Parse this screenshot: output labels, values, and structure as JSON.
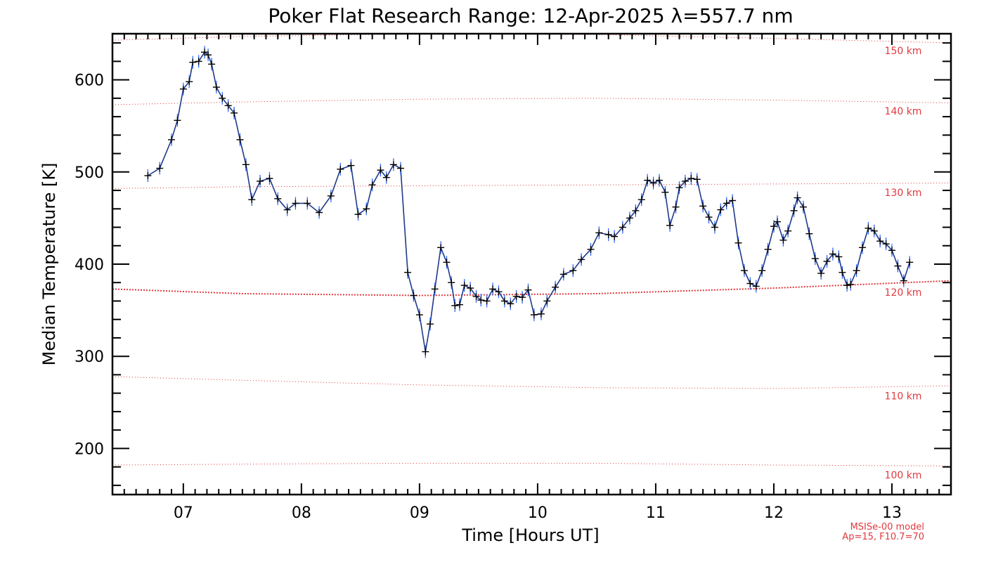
{
  "chart_data": {
    "type": "line",
    "title": "Poker Flat Research Range: 12-Apr-2025 λ=557.7 nm",
    "xlabel": "Time [Hours UT]",
    "ylabel": "Median Temperature [K]",
    "xlim": [
      6.4,
      13.5
    ],
    "ylim": [
      150,
      650
    ],
    "x_ticks": [
      7,
      8,
      9,
      10,
      11,
      12,
      13
    ],
    "x_tick_labels": [
      "07",
      "08",
      "09",
      "10",
      "11",
      "12",
      "13"
    ],
    "y_ticks": [
      200,
      300,
      400,
      500,
      600
    ],
    "y_tick_labels": [
      "200",
      "300",
      "400",
      "500",
      "600"
    ],
    "grid": false,
    "colors": {
      "series": "#1f3a8a",
      "error_bars": "#1f5fff",
      "markers": "#000000",
      "model": "#e0393e"
    },
    "series": [
      {
        "name": "",
        "x": [
          6.7,
          6.8,
          6.9,
          6.95,
          7.0,
          7.05,
          7.08,
          7.13,
          7.18,
          7.21,
          7.24,
          7.28,
          7.33,
          7.38,
          7.43,
          7.48,
          7.53,
          7.58,
          7.65,
          7.73,
          7.8,
          7.88,
          7.95,
          8.05,
          8.15,
          8.25,
          8.33,
          8.42,
          8.48,
          8.55,
          8.6,
          8.67,
          8.72,
          8.78,
          8.84,
          8.9,
          8.95,
          9.0,
          9.05,
          9.09,
          9.13,
          9.18,
          9.23,
          9.27,
          9.3,
          9.34,
          9.38,
          9.43,
          9.48,
          9.52,
          9.57,
          9.62,
          9.67,
          9.72,
          9.77,
          9.82,
          9.87,
          9.92,
          9.97,
          10.03,
          10.08,
          10.15,
          10.22,
          10.3,
          10.37,
          10.45,
          10.52,
          10.6,
          10.65,
          10.72,
          10.78,
          10.83,
          10.88,
          10.93,
          10.98,
          11.03,
          11.08,
          11.12,
          11.17,
          11.2,
          11.25,
          11.3,
          11.35,
          11.4,
          11.45,
          11.5,
          11.55,
          11.6,
          11.65,
          11.7,
          11.75,
          11.8,
          11.85,
          11.9,
          11.95,
          12.0,
          12.03,
          12.08,
          12.12,
          12.17,
          12.2,
          12.25,
          12.3,
          12.35,
          12.4,
          12.45,
          12.5,
          12.55,
          12.58,
          12.62,
          12.65,
          12.7,
          12.75,
          12.8,
          12.85,
          12.9,
          12.95,
          13.0,
          13.05,
          13.1,
          13.15
        ],
        "y": [
          496,
          504,
          535,
          556,
          590,
          598,
          619,
          620,
          630,
          627,
          617,
          592,
          580,
          572,
          564,
          535,
          508,
          470,
          490,
          493,
          471,
          459,
          466,
          466,
          456,
          474,
          503,
          507,
          454,
          460,
          486,
          502,
          494,
          508,
          504,
          391,
          366,
          345,
          305,
          335,
          373,
          418,
          402,
          380,
          355,
          356,
          377,
          374,
          365,
          361,
          360,
          373,
          370,
          360,
          357,
          365,
          364,
          372,
          345,
          346,
          360,
          375,
          389,
          393,
          405,
          416,
          434,
          432,
          430,
          440,
          450,
          458,
          470,
          491,
          488,
          491,
          478,
          442,
          462,
          483,
          490,
          493,
          492,
          463,
          451,
          440,
          459,
          466,
          469,
          423,
          393,
          379,
          376,
          393,
          416,
          441,
          446,
          426,
          436,
          458,
          472,
          462,
          433,
          406,
          390,
          403,
          411,
          408,
          391,
          377,
          378,
          393,
          418,
          439,
          436,
          425,
          422,
          415,
          398,
          382,
          402
        ]
      }
    ],
    "model": {
      "curves": [
        {
          "label": "100 km",
          "x": [
            6.4,
            7.5,
            9.0,
            10.5,
            12.0,
            13.5
          ],
          "y": [
            182,
            183,
            184,
            184,
            182,
            181
          ]
        },
        {
          "label": "110 km",
          "x": [
            6.4,
            7.5,
            9.0,
            10.5,
            12.0,
            13.5
          ],
          "y": [
            278,
            274,
            269,
            266,
            265,
            268
          ]
        },
        {
          "label": "120 km",
          "x": [
            6.4,
            7.5,
            9.0,
            10.5,
            12.0,
            13.5
          ],
          "y": [
            373,
            368,
            366,
            368,
            374,
            382
          ]
        },
        {
          "label": "130 km",
          "x": [
            6.4,
            7.5,
            9.0,
            10.5,
            12.0,
            13.5
          ],
          "y": [
            482,
            484,
            485,
            486,
            487,
            488
          ]
        },
        {
          "label": "140 km",
          "x": [
            6.4,
            7.5,
            9.0,
            10.5,
            12.0,
            13.5
          ],
          "y": [
            573,
            576,
            579,
            580,
            578,
            575
          ]
        },
        {
          "label": "150 km",
          "x": [
            6.4,
            7.5,
            9.0,
            10.5,
            12.0,
            13.5
          ],
          "y": [
            643,
            647,
            650,
            649,
            645,
            640
          ]
        }
      ],
      "note_line1": "MSISe-00 model",
      "note_line2": "Ap=15, F10.7=70"
    }
  }
}
